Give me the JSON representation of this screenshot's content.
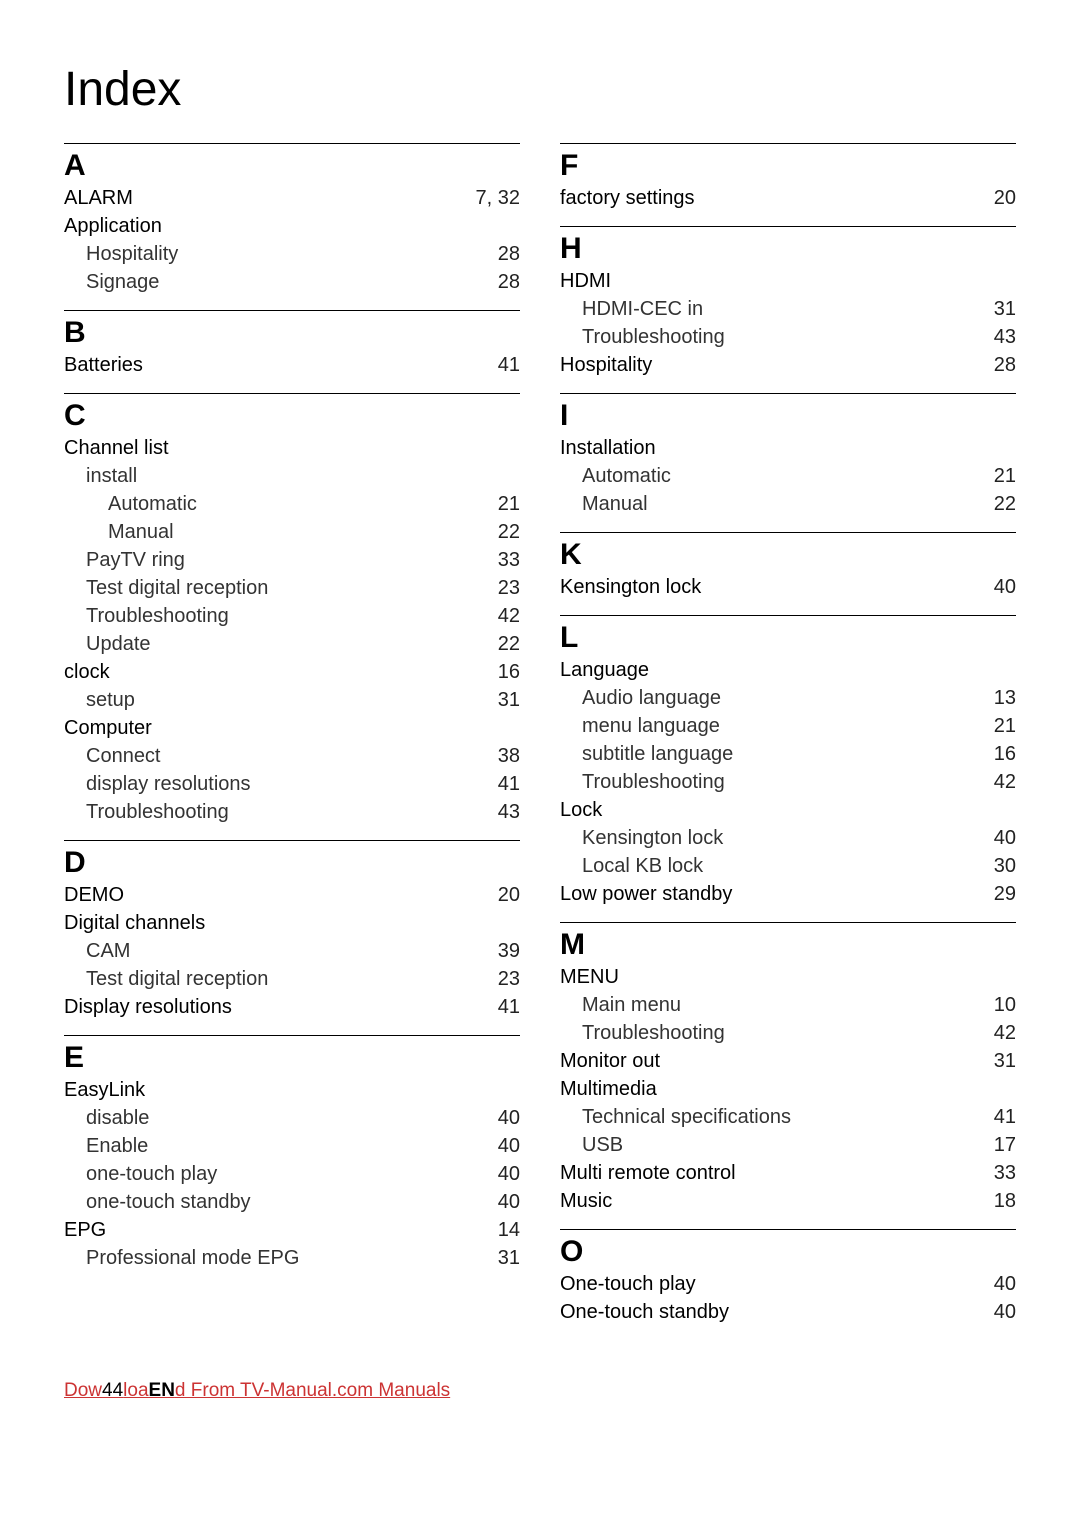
{
  "title": "Index",
  "footer": {
    "page_number": "44",
    "lang": "EN",
    "link_text_prefix": "Dow",
    "link_text_middle": "loa",
    "link_text_suffix": "d From TV-Manual.com Manuals",
    "link_text_full": "Downloaded From TV-Manual.com Manuals"
  },
  "columns": [
    {
      "sections": [
        {
          "letter": "A",
          "entries": [
            {
              "level": 0,
              "term": "ALARM",
              "pages": "7, 32"
            },
            {
              "level": 0,
              "term": "Application",
              "pages": ""
            },
            {
              "level": 1,
              "term": "Hospitality",
              "pages": "28"
            },
            {
              "level": 1,
              "term": "Signage",
              "pages": "28"
            }
          ]
        },
        {
          "letter": "B",
          "entries": [
            {
              "level": 0,
              "term": "Batteries",
              "pages": "41"
            }
          ]
        },
        {
          "letter": "C",
          "entries": [
            {
              "level": 0,
              "term": "Channel list",
              "pages": ""
            },
            {
              "level": 1,
              "term": "install",
              "pages": ""
            },
            {
              "level": 2,
              "term": "Automatic",
              "pages": "21"
            },
            {
              "level": 2,
              "term": "Manual",
              "pages": "22"
            },
            {
              "level": 1,
              "term": "PayTV ring",
              "pages": "33"
            },
            {
              "level": 1,
              "term": "Test digital reception",
              "pages": "23"
            },
            {
              "level": 1,
              "term": "Troubleshooting",
              "pages": "42"
            },
            {
              "level": 1,
              "term": "Update",
              "pages": "22"
            },
            {
              "level": 0,
              "term": "clock",
              "pages": "16"
            },
            {
              "level": 1,
              "term": "setup",
              "pages": "31"
            },
            {
              "level": 0,
              "term": "Computer",
              "pages": ""
            },
            {
              "level": 1,
              "term": "Connect",
              "pages": "38"
            },
            {
              "level": 1,
              "term": "display resolutions",
              "pages": "41"
            },
            {
              "level": 1,
              "term": "Troubleshooting",
              "pages": "43"
            }
          ]
        },
        {
          "letter": "D",
          "entries": [
            {
              "level": 0,
              "term": "DEMO",
              "pages": "20"
            },
            {
              "level": 0,
              "term": "Digital channels",
              "pages": ""
            },
            {
              "level": 1,
              "term": "CAM",
              "pages": "39"
            },
            {
              "level": 1,
              "term": "Test digital reception",
              "pages": "23"
            },
            {
              "level": 0,
              "term": "Display resolutions",
              "pages": "41"
            }
          ]
        },
        {
          "letter": "E",
          "entries": [
            {
              "level": 0,
              "term": "EasyLink",
              "pages": ""
            },
            {
              "level": 1,
              "term": "disable",
              "pages": "40"
            },
            {
              "level": 1,
              "term": "Enable",
              "pages": "40"
            },
            {
              "level": 1,
              "term": "one-touch play",
              "pages": "40"
            },
            {
              "level": 1,
              "term": "one-touch standby",
              "pages": "40"
            },
            {
              "level": 0,
              "term": "EPG",
              "pages": "14"
            },
            {
              "level": 1,
              "term": "Professional mode EPG",
              "pages": "31"
            }
          ]
        }
      ]
    },
    {
      "sections": [
        {
          "letter": "F",
          "entries": [
            {
              "level": 0,
              "term": "factory settings",
              "pages": "20"
            }
          ]
        },
        {
          "letter": "H",
          "entries": [
            {
              "level": 0,
              "term": "HDMI",
              "pages": ""
            },
            {
              "level": 1,
              "term": "HDMI-CEC in",
              "pages": "31"
            },
            {
              "level": 1,
              "term": "Troubleshooting",
              "pages": "43"
            },
            {
              "level": 0,
              "term": "Hospitality",
              "pages": "28"
            }
          ]
        },
        {
          "letter": "I",
          "entries": [
            {
              "level": 0,
              "term": "Installation",
              "pages": ""
            },
            {
              "level": 1,
              "term": "Automatic",
              "pages": "21"
            },
            {
              "level": 1,
              "term": "Manual",
              "pages": "22"
            }
          ]
        },
        {
          "letter": "K",
          "entries": [
            {
              "level": 0,
              "term": "Kensington lock",
              "pages": "40"
            }
          ]
        },
        {
          "letter": "L",
          "entries": [
            {
              "level": 0,
              "term": "Language",
              "pages": ""
            },
            {
              "level": 1,
              "term": "Audio language",
              "pages": "13"
            },
            {
              "level": 1,
              "term": "menu language",
              "pages": "21"
            },
            {
              "level": 1,
              "term": "subtitle language",
              "pages": "16"
            },
            {
              "level": 1,
              "term": "Troubleshooting",
              "pages": "42"
            },
            {
              "level": 0,
              "term": "Lock",
              "pages": ""
            },
            {
              "level": 1,
              "term": "Kensington lock",
              "pages": "40"
            },
            {
              "level": 1,
              "term": "Local KB lock",
              "pages": "30"
            },
            {
              "level": 0,
              "term": "Low power standby",
              "pages": "29"
            }
          ]
        },
        {
          "letter": "M",
          "entries": [
            {
              "level": 0,
              "term": "MENU",
              "pages": ""
            },
            {
              "level": 1,
              "term": "Main menu",
              "pages": "10"
            },
            {
              "level": 1,
              "term": "Troubleshooting",
              "pages": "42"
            },
            {
              "level": 0,
              "term": "Monitor out",
              "pages": "31"
            },
            {
              "level": 0,
              "term": "Multimedia",
              "pages": ""
            },
            {
              "level": 1,
              "term": "Technical specifications",
              "pages": "41"
            },
            {
              "level": 1,
              "term": "USB",
              "pages": "17"
            },
            {
              "level": 0,
              "term": "Multi remote control",
              "pages": "33"
            },
            {
              "level": 0,
              "term": "Music",
              "pages": "18"
            }
          ]
        },
        {
          "letter": "O",
          "entries": [
            {
              "level": 0,
              "term": "One-touch play",
              "pages": "40"
            },
            {
              "level": 0,
              "term": "One-touch standby",
              "pages": "40"
            }
          ]
        }
      ]
    }
  ]
}
